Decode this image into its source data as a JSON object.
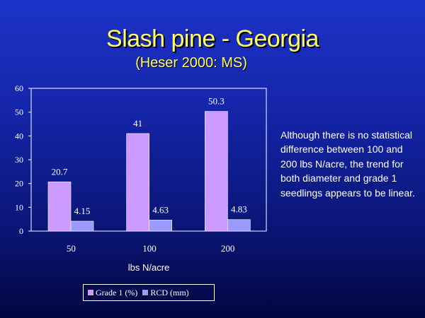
{
  "slide": {
    "title": "Slash pine - Georgia",
    "subtitle": "(Heser 2000: MS)",
    "note": "Although there is no statistical difference between 100 and 200 lbs N/acre, the trend for both diameter and grade 1 seedlings appears to be linear."
  },
  "colors": {
    "grade1": "#cc99ff",
    "rcd": "#9999ff",
    "title": "#ffff66"
  },
  "chart_data": {
    "type": "bar",
    "categories": [
      "50",
      "100",
      "200"
    ],
    "series": [
      {
        "name": "Grade 1 (%)",
        "values": [
          20.7,
          41,
          50.3
        ],
        "labels": [
          "20.7",
          "41",
          "50.3"
        ]
      },
      {
        "name": "RCD (mm)",
        "values": [
          4.15,
          4.63,
          4.83
        ],
        "labels": [
          "4.15",
          "4.63",
          "4.83"
        ]
      }
    ],
    "xlabel": "lbs N/acre",
    "ylabel": "",
    "ylim": [
      0,
      60
    ],
    "yticks": [
      0,
      10,
      20,
      30,
      40,
      50,
      60
    ],
    "grid": false,
    "legend": "bottom"
  }
}
